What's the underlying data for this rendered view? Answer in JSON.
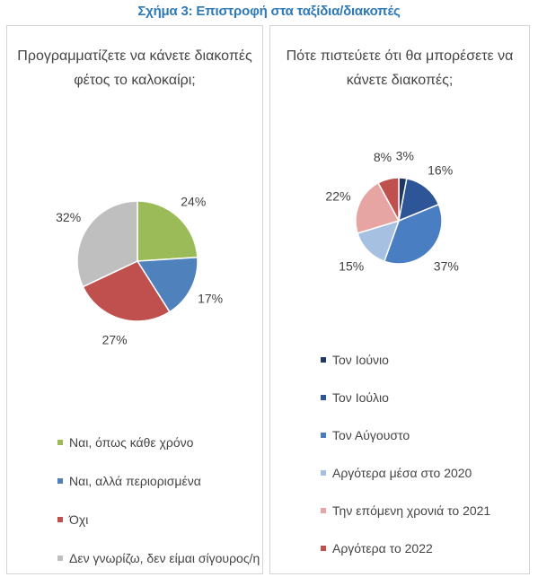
{
  "figure_title": "Σχήμα 3: Επιστροφή στα ταξίδια/διακοπές",
  "chart_data": [
    {
      "type": "pie",
      "title": "Προγραμματίζετε να κάνετε διακοπές φέτος το καλοκαίρι;",
      "categories": [
        "Ναι, όπως κάθε χρόνο",
        "Ναι, αλλά περιορισμένα",
        "Όχι",
        "Δεν γνωρίζω, δεν είμαι σίγουρος/η"
      ],
      "values": [
        24,
        17,
        27,
        32
      ],
      "data_labels": [
        "24%",
        "17%",
        "27%",
        "32%"
      ],
      "colors": [
        "#9bbb59",
        "#4f81bd",
        "#c0504d",
        "#bfbfbf"
      ],
      "legend_position": "bottom",
      "start_angle_deg": 0,
      "direction": "clockwise"
    },
    {
      "type": "pie",
      "title": "Πότε πιστεύετε ότι θα μπορέσετε να κάνετε διακοπές;",
      "categories": [
        "Τον Ιούνιο",
        "Τον Ιούλιο",
        "Τον Αύγουστο",
        "Αργότερα μέσα στο 2020",
        "Την επόμενη χρονιά το 2021",
        "Αργότερα το 2022"
      ],
      "values": [
        3,
        16,
        37,
        15,
        22,
        8
      ],
      "data_labels": [
        "3%",
        "16%",
        "37%",
        "15%",
        "22%",
        "8%"
      ],
      "colors": [
        "#1f3864",
        "#2e5597",
        "#4a7ec2",
        "#a5c0e0",
        "#e6a5a3",
        "#c0504d"
      ],
      "legend_position": "bottom",
      "start_angle_deg": 0,
      "direction": "clockwise"
    }
  ]
}
